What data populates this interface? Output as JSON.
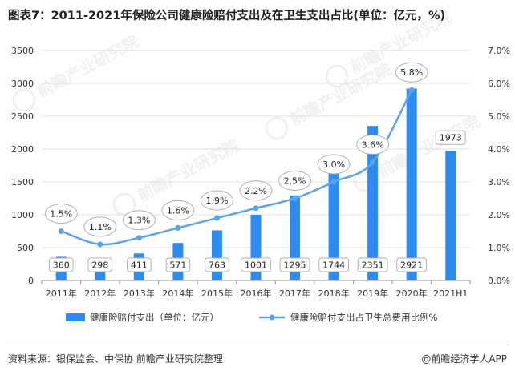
{
  "title": "图表7：2011-2021年保险公司健康险赔付支出及在卫生支出占比(单位：亿元，%)",
  "watermark": "前瞻产业研究院",
  "footer": {
    "source": "资料来源：银保监会、中保协 前瞻产业研究院整理",
    "credit": "@前瞻经济学人APP"
  },
  "colors": {
    "bar": "#2e8cf0",
    "line": "#5aa5ea",
    "grid": "#e0e0e0",
    "label_border": "#b0b0b0"
  },
  "chart_data": {
    "type": "bar",
    "categories": [
      "2011年",
      "2012年",
      "2013年",
      "2014年",
      "2015年",
      "2016年",
      "2017年",
      "2018年",
      "2019年",
      "2020年",
      "2021H1"
    ],
    "series": [
      {
        "name": "健康险赔付支出（单位：亿元）",
        "type": "bar",
        "axis": "left",
        "values": [
          360,
          298,
          411,
          571,
          763,
          1001,
          1295,
          1744,
          2351,
          2921,
          1973
        ]
      },
      {
        "name": "健康险赔付支出占卫生总费用比例%",
        "type": "line",
        "axis": "right",
        "values": [
          1.5,
          1.1,
          1.3,
          1.6,
          1.9,
          2.2,
          2.5,
          3.0,
          3.6,
          5.8,
          null
        ]
      }
    ],
    "bar_labels": [
      "360",
      "298",
      "411",
      "571",
      "763",
      "1001",
      "1295",
      "1744",
      "2351",
      "2921",
      "1973"
    ],
    "line_labels": [
      "1.5%",
      "1.1%",
      "1.3%",
      "1.6%",
      "1.9%",
      "2.2%",
      "2.5%",
      "3.0%",
      "3.6%",
      "5.8%",
      ""
    ],
    "y_left": {
      "min": 0,
      "max": 3500,
      "ticks": [
        "0",
        "500",
        "1000",
        "1500",
        "2000",
        "2500",
        "3000",
        "3500"
      ]
    },
    "y_right": {
      "min": 0,
      "max": 7,
      "ticks": [
        "0.0%",
        "1.0%",
        "2.0%",
        "3.0%",
        "4.0%",
        "5.0%",
        "6.0%",
        "7.0%"
      ]
    },
    "grid": true,
    "legend_position": "bottom"
  }
}
